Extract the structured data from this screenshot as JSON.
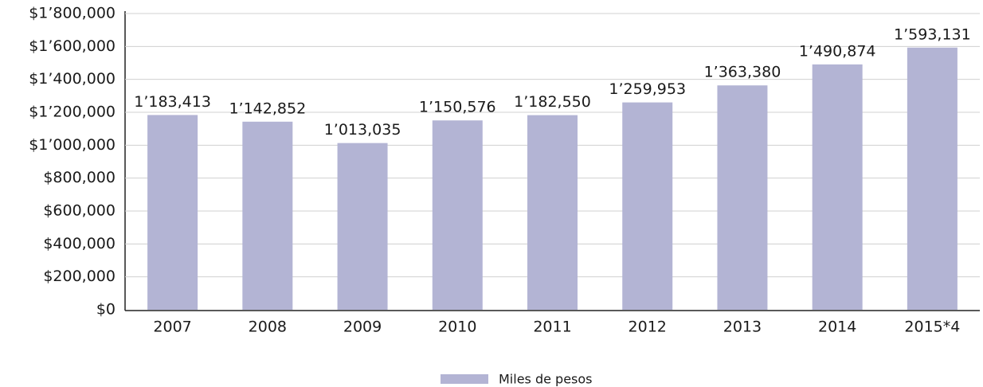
{
  "chart_data": {
    "type": "bar",
    "categories": [
      "2007",
      "2008",
      "2009",
      "2010",
      "2011",
      "2012",
      "2013",
      "2014",
      "2015*4"
    ],
    "series": [
      {
        "name": "Miles de pesos",
        "color": "#b3b4d4",
        "values": [
          1183413,
          1142852,
          1013035,
          1150576,
          1182550,
          1259953,
          1363380,
          1490874,
          1593131
        ],
        "value_labels": [
          "1’183,413",
          "1’142,852",
          "1’013,035",
          "1’150,576",
          "1’182,550",
          "1’259,953",
          "1’363,380",
          "1’490,874",
          "1’593,131"
        ]
      }
    ],
    "ylim": [
      0,
      1800000
    ],
    "yticks": [
      {
        "value": 0,
        "label": "$0"
      },
      {
        "value": 200000,
        "label": "$200,000"
      },
      {
        "value": 400000,
        "label": "$400,000"
      },
      {
        "value": 600000,
        "label": "$600,000"
      },
      {
        "value": 800000,
        "label": "$800,000"
      },
      {
        "value": 1000000,
        "label": "$1’000,000"
      },
      {
        "value": 1200000,
        "label": "$1’200,000"
      },
      {
        "value": 1400000,
        "label": "$1’400,000"
      },
      {
        "value": 1600000,
        "label": "$1’600,000"
      },
      {
        "value": 1800000,
        "label": "$1’800,000"
      }
    ],
    "grid": true,
    "legend": "bottom"
  }
}
